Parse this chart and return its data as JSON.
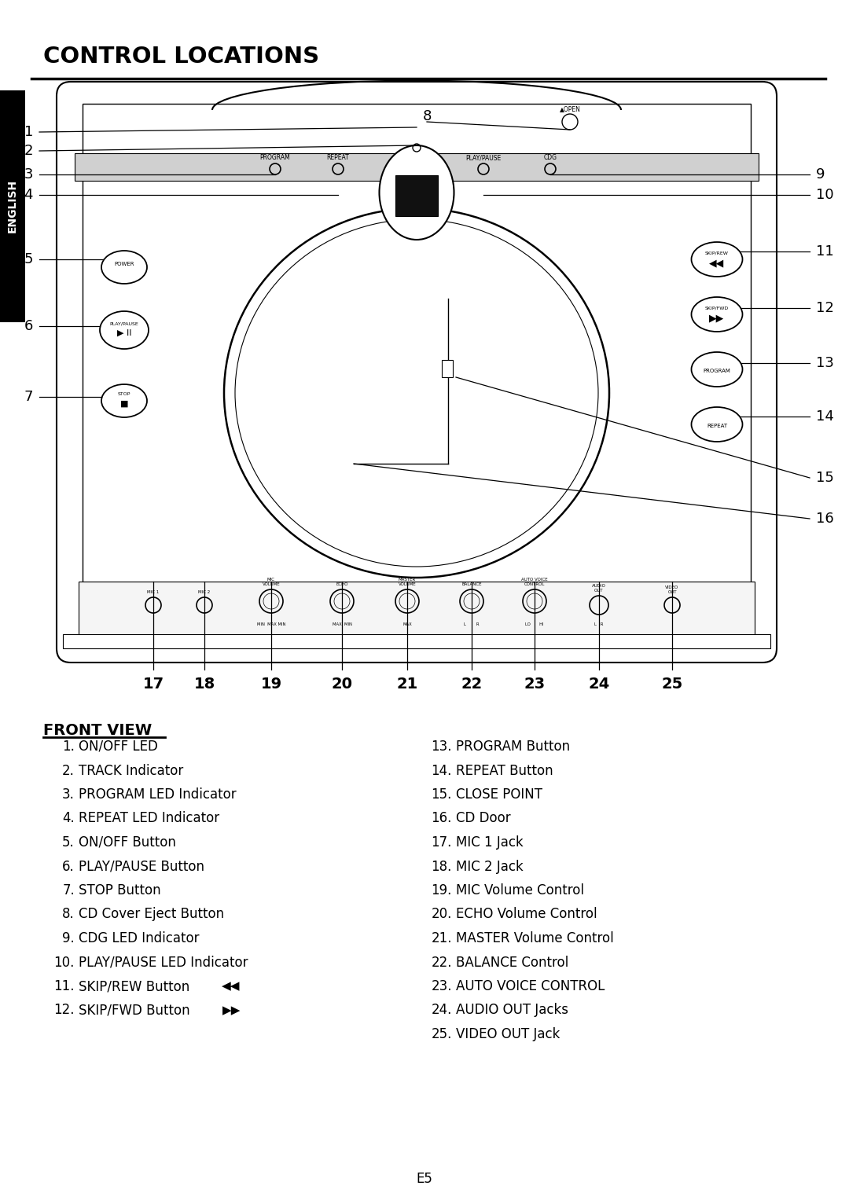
{
  "title": "CONTROL LOCATIONS",
  "page_label": "E5",
  "english_label": "ENGLISH",
  "bg_color": "#ffffff",
  "title_color": "#000000",
  "english_bg": "#000000",
  "english_text_color": "#ffffff",
  "front_view_title": "FRONT VIEW",
  "left_items": [
    "ON/OFF LED",
    "TRACK Indicator",
    "PROGRAM LED Indicator",
    "REPEAT LED Indicator",
    "ON/OFF Button",
    "PLAY/PAUSE Button",
    "STOP Button",
    "CD Cover Eject Button",
    "CDG LED Indicator",
    "PLAY/PAUSE LED Indicator",
    "SKIP/REW Button",
    "SKIP/FWD Button"
  ],
  "right_items": [
    "PROGRAM Button",
    "REPEAT Button",
    "CLOSE POINT",
    "CD Door",
    "MIC 1 Jack",
    "MIC 2 Jack",
    "MIC Volume Control",
    "ECHO Volume Control",
    "MASTER Volume Control",
    "BALANCE Control",
    "AUTO VOICE CONTROL",
    "AUDIO OUT Jacks",
    "VIDEO OUT Jack"
  ]
}
